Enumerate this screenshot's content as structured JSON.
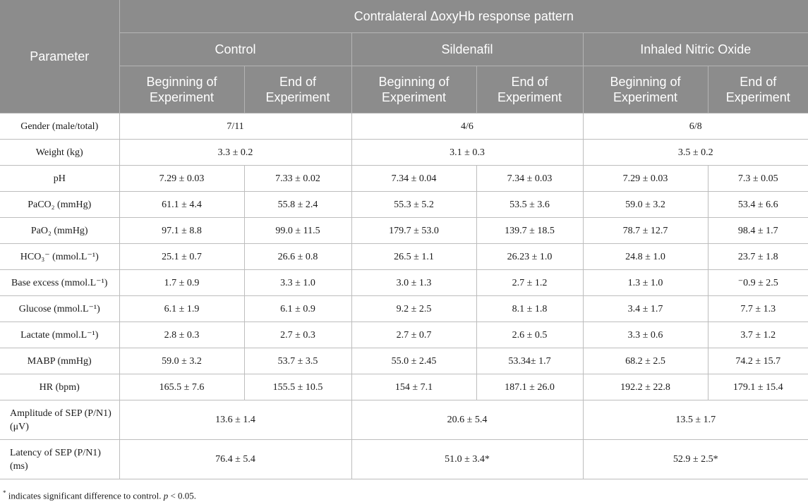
{
  "table": {
    "caption_group": "Contralateral ΔoxyHb response pattern",
    "param_header": "Parameter",
    "groups": [
      "Control",
      "Sildenafil",
      "Inhaled Nitric Oxide"
    ],
    "subheaders": [
      "Beginning of Experiment",
      "End of Experiment"
    ],
    "rows": [
      {
        "param": "Gender (male/total)",
        "merged": true,
        "cells": [
          "7/11",
          "4/6",
          "6/8"
        ]
      },
      {
        "param": "Weight (kg)",
        "merged": true,
        "cells": [
          "3.3 ± 0.2",
          "3.1 ± 0.3",
          "3.5 ± 0.2"
        ]
      },
      {
        "param": "pH",
        "merged": false,
        "cells": [
          "7.29 ± 0.03",
          "7.33 ± 0.02",
          "7.34 ± 0.04",
          "7.34 ± 0.03",
          "7.29 ± 0.03",
          "7.3 ± 0.05"
        ]
      },
      {
        "param": "PaCO₂ (mmHg)",
        "merged": false,
        "cells": [
          "61.1 ± 4.4",
          "55.8 ± 2.4",
          "55.3 ± 5.2",
          "53.5 ± 3.6",
          "59.0 ± 3.2",
          "53.4 ± 6.6"
        ]
      },
      {
        "param": "PaO₂ (mmHg)",
        "merged": false,
        "cells": [
          "97.1 ± 8.8",
          "99.0 ± 11.5",
          "179.7 ± 53.0",
          "139.7 ± 18.5",
          "78.7 ± 12.7",
          "98.4 ± 1.7"
        ]
      },
      {
        "param": "HCO₃⁻ (mmol.L⁻¹)",
        "merged": false,
        "cells": [
          "25.1 ± 0.7",
          "26.6 ± 0.8",
          "26.5 ± 1.1",
          "26.23 ± 1.0",
          "24.8 ± 1.0",
          "23.7 ± 1.8"
        ]
      },
      {
        "param": "Base excess (mmol.L⁻¹)",
        "merged": false,
        "cells": [
          "1.7 ± 0.9",
          "3.3 ± 1.0",
          "3.0 ± 1.3",
          "2.7 ± 1.2",
          "1.3 ± 1.0",
          "⁻0.9 ± 2.5"
        ]
      },
      {
        "param": "Glucose (mmol.L⁻¹)",
        "merged": false,
        "cells": [
          "6.1 ± 1.9",
          "6.1 ± 0.9",
          "9.2 ± 2.5",
          "8.1 ± 1.8",
          "3.4 ± 1.7",
          "7.7 ± 1.3"
        ]
      },
      {
        "param": "Lactate (mmol.L⁻¹)",
        "merged": false,
        "cells": [
          "2.8 ± 0.3",
          "2.7 ± 0.3",
          "2.7 ± 0.7",
          "2.6 ± 0.5",
          "3.3 ± 0.6",
          "3.7 ± 1.2"
        ]
      },
      {
        "param": "MABP (mmHg)",
        "merged": false,
        "cells": [
          "59.0 ± 3.2",
          "53.7 ± 3.5",
          "55.0 ± 2.45",
          "53.34± 1.7",
          "68.2 ± 2.5",
          "74.2 ± 15.7"
        ]
      },
      {
        "param": "HR (bpm)",
        "merged": false,
        "cells": [
          "165.5 ± 7.6",
          "155.5 ± 10.5",
          "154 ± 7.1",
          "187.1 ± 26.0",
          "192.2 ± 22.8",
          "179.1 ± 15.4"
        ]
      },
      {
        "param": "Amplitude of SEP (P/N1) (μV)",
        "merged": true,
        "tall": true,
        "cells": [
          "13.6 ± 1.4",
          "20.6 ± 5.4",
          "13.5 ± 1.7"
        ]
      },
      {
        "param": "Latency of SEP (P/N1) (ms)",
        "merged": true,
        "tall": true,
        "cells": [
          "76.4 ± 5.4",
          "51.0 ± 3.4*",
          "52.9 ± 2.5*"
        ]
      }
    ]
  },
  "footnote": {
    "marker": "*",
    "text": " indicates significant difference to control. ",
    "p_symbol": "p",
    "p_text": " < 0.05."
  }
}
